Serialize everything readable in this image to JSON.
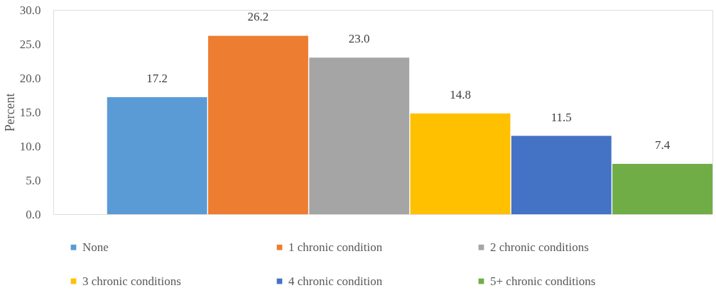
{
  "chart_data": {
    "type": "bar",
    "ylabel": "Percent",
    "categories": [
      null
    ],
    "series": [
      {
        "name": "None",
        "color": "#5b9bd5",
        "values": [
          17.2
        ],
        "value_labels": [
          "17.2"
        ]
      },
      {
        "name": "1 chronic condition",
        "color": "#ed7d31",
        "values": [
          26.2
        ],
        "value_labels": [
          "26.2"
        ]
      },
      {
        "name": "2 chronic conditions",
        "color": "#a5a5a5",
        "values": [
          23.0
        ],
        "value_labels": [
          "23.0"
        ]
      },
      {
        "name": "3 chronic conditions",
        "color": "#ffc000",
        "values": [
          14.8
        ],
        "value_labels": [
          "14.8"
        ]
      },
      {
        "name": "4 chronic condition",
        "color": "#4472c4",
        "values": [
          11.5
        ],
        "value_labels": [
          "11.5"
        ]
      },
      {
        "name": "5+ chronic conditions",
        "color": "#70ad47",
        "values": [
          7.4
        ],
        "value_labels": [
          "7.4"
        ]
      }
    ],
    "ylim": [
      0,
      30
    ],
    "yticks": [
      {
        "value": 0,
        "label": "0.0"
      },
      {
        "value": 5,
        "label": "5.0"
      },
      {
        "value": 10,
        "label": "10.0"
      },
      {
        "value": 15,
        "label": "15.0"
      },
      {
        "value": 20,
        "label": "20.0"
      },
      {
        "value": 25,
        "label": "25.0"
      },
      {
        "value": 30,
        "label": "30.0"
      }
    ],
    "tick_labels": "y",
    "grid": false,
    "legend": "bottom"
  }
}
